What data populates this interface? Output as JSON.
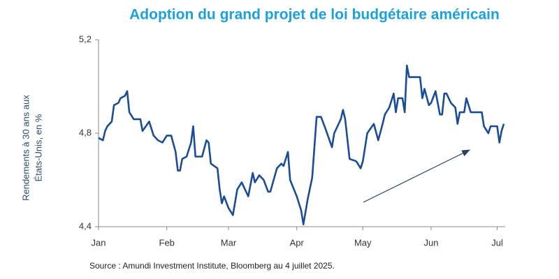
{
  "chart_data": {
    "type": "line",
    "title": "Adoption du grand projet de loi budgétaire américain",
    "ylabel": [
      "Rendements à 30 ans aux",
      "États-Unis, en %"
    ],
    "source": "Source : Amundi Investment  Institute, Bloomberg au 4 juillet 2025.",
    "x": [
      0,
      2,
      3,
      4,
      6,
      7,
      9,
      10,
      12,
      13,
      14,
      16,
      19,
      20,
      23,
      25,
      27,
      29,
      31,
      33,
      35,
      36,
      37,
      38,
      40,
      42,
      43,
      44,
      47,
      49,
      50,
      51,
      54,
      55,
      56,
      57,
      59,
      61,
      63,
      65,
      66,
      68,
      70,
      71,
      73,
      75,
      77,
      78,
      81,
      83,
      84,
      86,
      87,
      90,
      92,
      93,
      95,
      97,
      99,
      101,
      103,
      106,
      107,
      110,
      111,
      112,
      114,
      117,
      119,
      120,
      122,
      125,
      127,
      129,
      130,
      132,
      134,
      135,
      136,
      138,
      139,
      140,
      141,
      146,
      147,
      148,
      150,
      151,
      153,
      155,
      156,
      157,
      158,
      160,
      162,
      163,
      164,
      166,
      167,
      169,
      174,
      175,
      177,
      178,
      181,
      182,
      183,
      184
    ],
    "series": [
      {
        "color": "#1a4d98",
        "values": [
          4.78,
          4.77,
          4.81,
          4.83,
          4.85,
          4.92,
          4.93,
          4.95,
          4.96,
          4.98,
          4.89,
          4.86,
          4.86,
          4.81,
          4.85,
          4.79,
          4.77,
          4.76,
          4.79,
          4.79,
          4.72,
          4.64,
          4.64,
          4.69,
          4.7,
          4.76,
          4.83,
          4.7,
          4.7,
          4.77,
          4.76,
          4.67,
          4.65,
          4.56,
          4.5,
          4.53,
          4.48,
          4.45,
          4.56,
          4.59,
          4.57,
          4.53,
          4.63,
          4.59,
          4.62,
          4.6,
          4.55,
          4.55,
          4.65,
          4.67,
          4.66,
          4.72,
          4.6,
          4.53,
          4.47,
          4.41,
          4.52,
          4.61,
          4.87,
          4.87,
          4.82,
          4.74,
          4.8,
          4.86,
          4.9,
          4.86,
          4.69,
          4.68,
          4.65,
          4.68,
          4.8,
          4.84,
          4.77,
          4.84,
          4.88,
          4.91,
          4.97,
          4.89,
          4.95,
          4.95,
          4.89,
          5.09,
          5.04,
          5.04,
          4.95,
          4.99,
          4.92,
          4.93,
          4.98,
          4.88,
          4.88,
          4.97,
          4.97,
          4.93,
          4.91,
          4.84,
          4.89,
          4.89,
          4.95,
          4.89,
          4.89,
          4.83,
          4.8,
          4.83,
          4.83,
          4.76,
          4.81,
          4.84
        ]
      }
    ],
    "xlim": [
      0,
      184
    ],
    "xticks": [
      {
        "value": 0,
        "label": "Jan"
      },
      {
        "value": 31,
        "label": "Feb"
      },
      {
        "value": 59,
        "label": "Mar"
      },
      {
        "value": 90,
        "label": "Apr"
      },
      {
        "value": 120,
        "label": "May"
      },
      {
        "value": 151,
        "label": "Jun"
      },
      {
        "value": 181,
        "label": "Jul"
      }
    ],
    "ylim": [
      4.4,
      5.2
    ],
    "yticks": [
      {
        "value": 4.4,
        "label": "4,4"
      },
      {
        "value": 4.8,
        "label": "4,8"
      },
      {
        "value": 5.2,
        "label": "5,2"
      }
    ]
  }
}
